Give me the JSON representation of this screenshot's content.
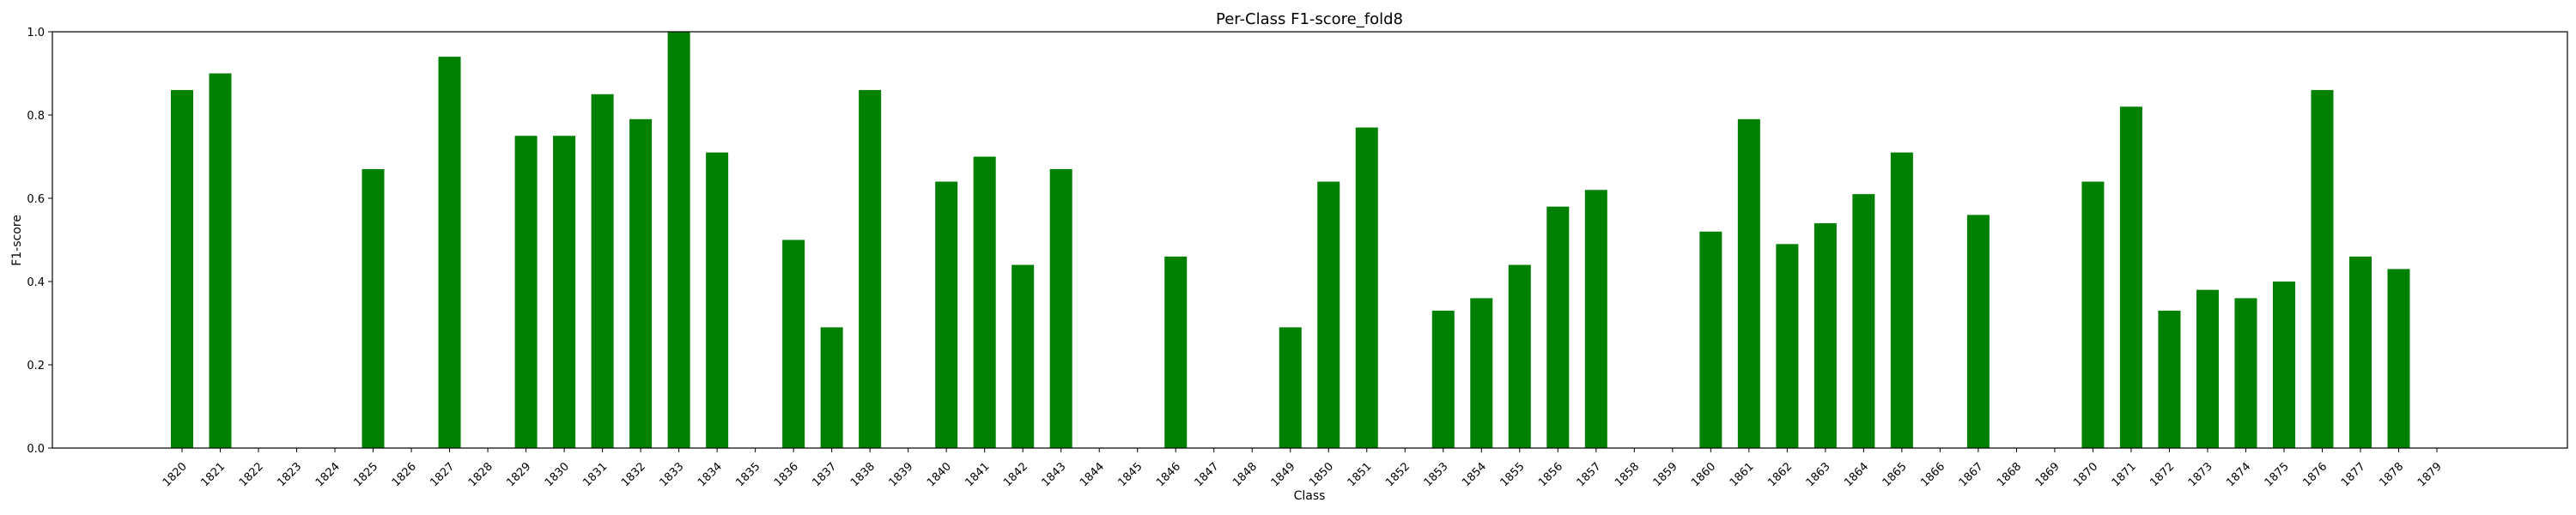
{
  "chart_data": {
    "type": "bar",
    "title": "Per-Class F1-score_fold8",
    "xlabel": "Class",
    "ylabel": "F1-score",
    "ylim": [
      0,
      1.0
    ],
    "yticks": [
      "0.0",
      "0.2",
      "0.4",
      "0.6",
      "0.8",
      "1.0"
    ],
    "grid": false,
    "bar_color": "#008000",
    "categories": [
      "1820",
      "1821",
      "1822",
      "1823",
      "1824",
      "1825",
      "1826",
      "1827",
      "1828",
      "1829",
      "1830",
      "1831",
      "1832",
      "1833",
      "1834",
      "1835",
      "1836",
      "1837",
      "1838",
      "1839",
      "1840",
      "1841",
      "1842",
      "1843",
      "1844",
      "1845",
      "1846",
      "1847",
      "1848",
      "1849",
      "1850",
      "1851",
      "1852",
      "1853",
      "1854",
      "1855",
      "1856",
      "1857",
      "1858",
      "1859",
      "1860",
      "1861",
      "1862",
      "1863",
      "1864",
      "1865",
      "1866",
      "1867",
      "1868",
      "1869",
      "1870",
      "1871",
      "1872",
      "1873",
      "1874",
      "1875",
      "1876",
      "1877",
      "1878",
      "1879"
    ],
    "values": [
      0.86,
      0.9,
      0,
      0,
      0,
      0.67,
      0,
      0.94,
      0,
      0.75,
      0.75,
      0.85,
      0.79,
      1.0,
      0.71,
      0,
      0.5,
      0.29,
      0.86,
      0,
      0.64,
      0.7,
      0.44,
      0.67,
      0,
      0,
      0.46,
      0,
      0,
      0.29,
      0.64,
      0.77,
      0,
      0.33,
      0.36,
      0.44,
      0.58,
      0.62,
      0,
      0,
      0.52,
      0.79,
      0.49,
      0.54,
      0.61,
      0.71,
      0,
      0.56,
      0,
      0,
      0.64,
      0.82,
      0.33,
      0.38,
      0.36,
      0.4,
      0.86,
      0.46,
      0.43,
      0
    ]
  }
}
